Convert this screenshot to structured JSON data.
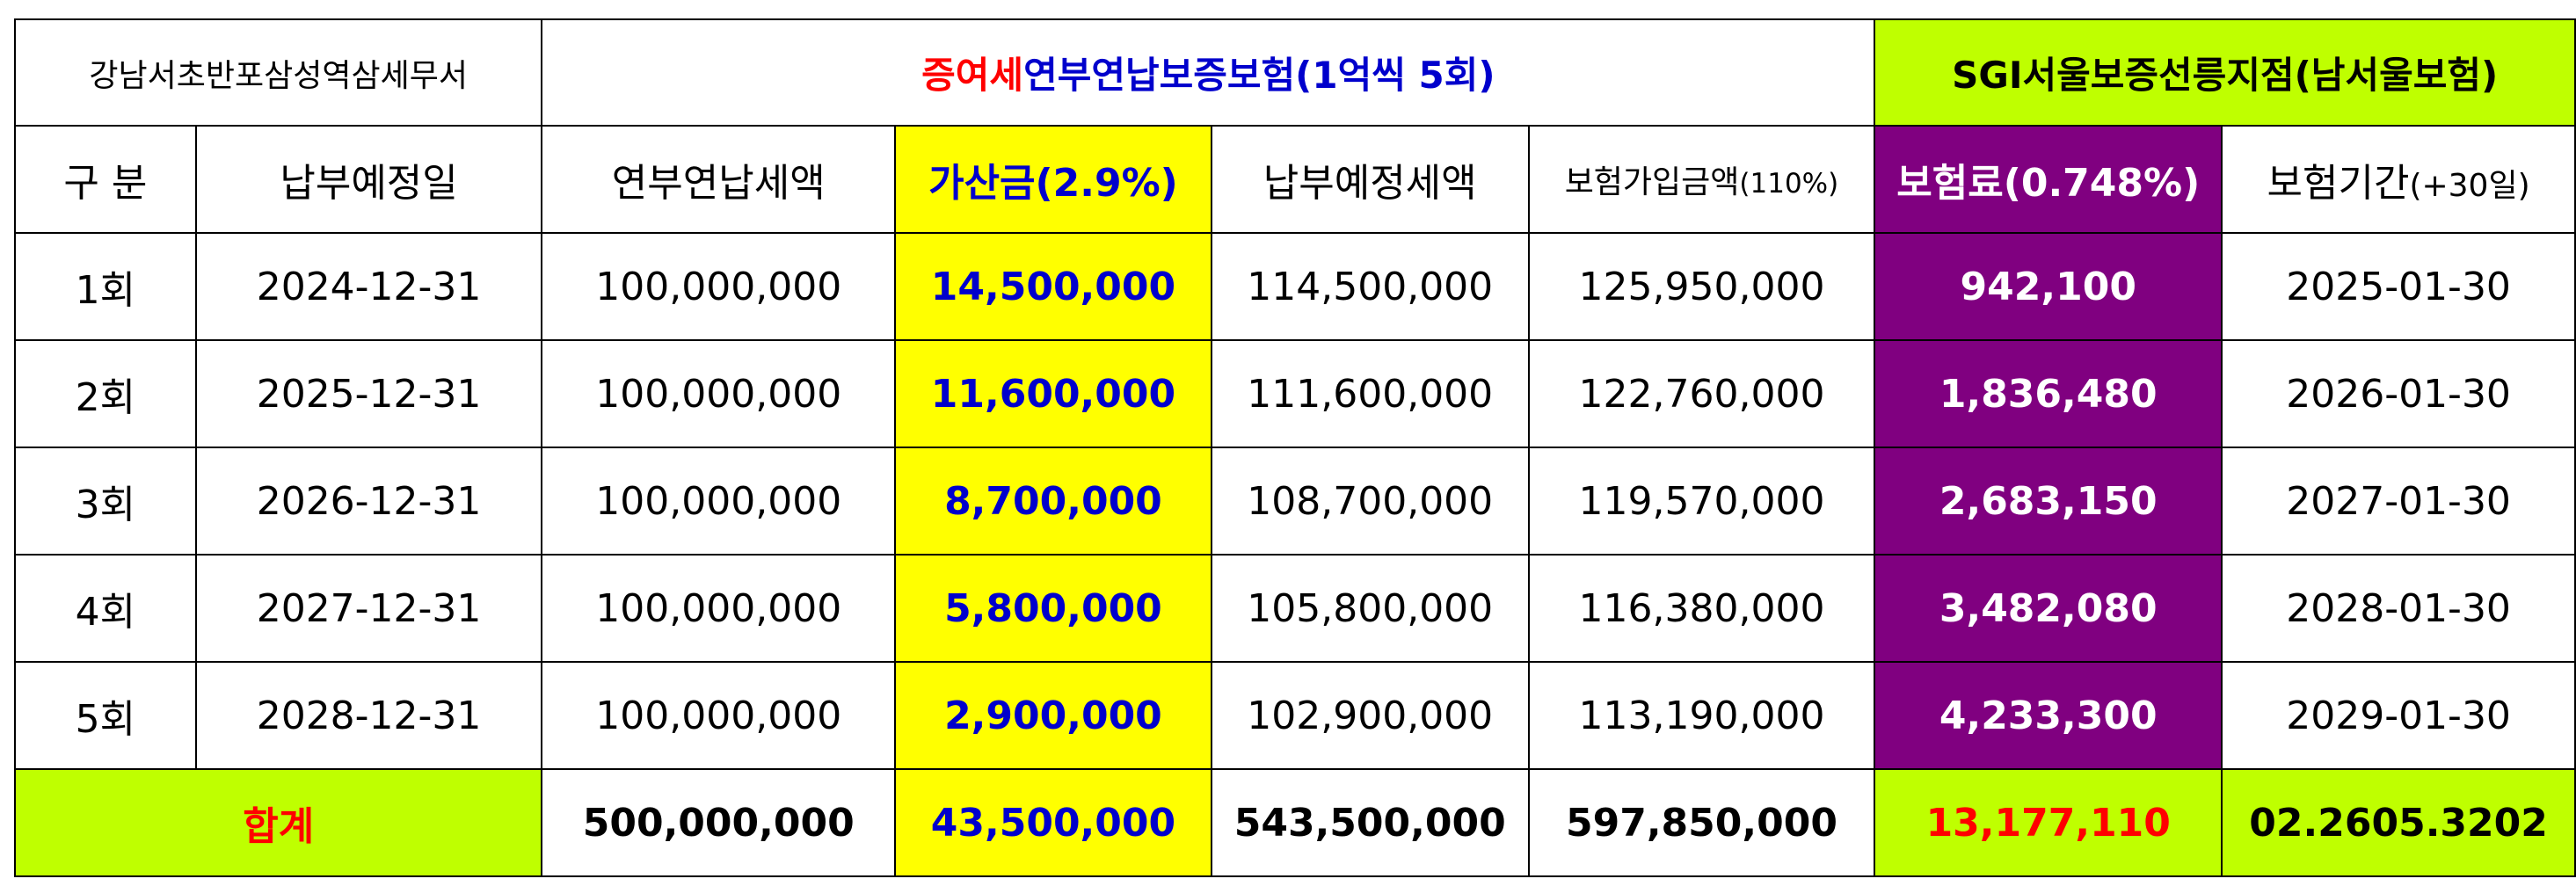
{
  "header": {
    "office": "강남서초반포삼성역삼세무서",
    "title_red": "증여세",
    "title_blue": "연부연납보증보험(1억씩 5회)",
    "agency": "SGI서울보증선릉지점(남서울보험)"
  },
  "columns": {
    "gubun": "구 분",
    "due_date": "납부예정일",
    "installment": "연부연납세액",
    "surcharge": "가산금(2.9%)",
    "payment": "납부예정세액",
    "insured_main": "보험가입금액",
    "insured_pct": "(110%)",
    "premium": "보험료(0.748%)",
    "period_main": "보험기간",
    "period_paren": "(+30일)"
  },
  "rows": [
    {
      "no": "1회",
      "due": "2024-12-31",
      "installment": "100,000,000",
      "surcharge": "14,500,000",
      "payment": "114,500,000",
      "insured": "125,950,000",
      "premium": "942,100",
      "period": "2025-01-30"
    },
    {
      "no": "2회",
      "due": "2025-12-31",
      "installment": "100,000,000",
      "surcharge": "11,600,000",
      "payment": "111,600,000",
      "insured": "122,760,000",
      "premium": "1,836,480",
      "period": "2026-01-30"
    },
    {
      "no": "3회",
      "due": "2026-12-31",
      "installment": "100,000,000",
      "surcharge": "8,700,000",
      "payment": "108,700,000",
      "insured": "119,570,000",
      "premium": "2,683,150",
      "period": "2027-01-30"
    },
    {
      "no": "4회",
      "due": "2027-12-31",
      "installment": "100,000,000",
      "surcharge": "5,800,000",
      "payment": "105,800,000",
      "insured": "116,380,000",
      "premium": "3,482,080",
      "period": "2028-01-30"
    },
    {
      "no": "5회",
      "due": "2028-12-31",
      "installment": "100,000,000",
      "surcharge": "2,900,000",
      "payment": "102,900,000",
      "insured": "113,190,000",
      "premium": "4,233,300",
      "period": "2029-01-30"
    }
  ],
  "totals": {
    "label": "합계",
    "installment": "500,000,000",
    "surcharge": "43,500,000",
    "payment": "543,500,000",
    "insured": "597,850,000",
    "premium": "13,177,110",
    "phone": "02.2605.3202"
  },
  "colors": {
    "yellow": "#ffff00",
    "lime": "#bfff00",
    "purple": "#800080",
    "red": "#ff0000",
    "blue": "#0000cc"
  }
}
